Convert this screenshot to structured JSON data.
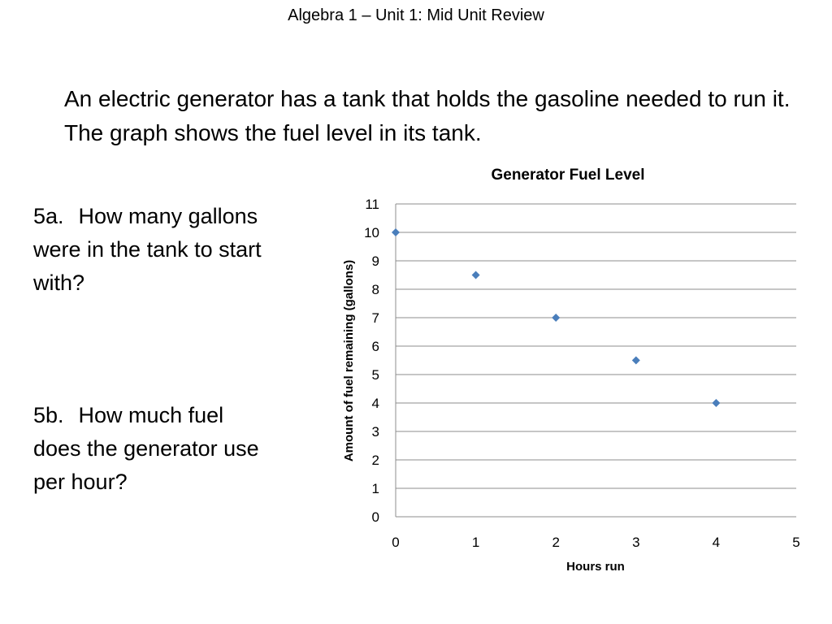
{
  "slide": {
    "title": "Algebra 1 – Unit 1: Mid Unit Review",
    "intro": "An electric generator has a tank that holds the gasoline needed to run it. The graph shows the fuel level in its tank."
  },
  "questions": [
    {
      "number": "5a.",
      "text": "How many gallons were in the tank to start with?"
    },
    {
      "number": "5b.",
      "text": "How much fuel does the generator use per hour?"
    }
  ],
  "chart_data": {
    "type": "scatter",
    "title": "Generator Fuel Level",
    "xlabel": "Hours run",
    "ylabel": "Amount of fuel remaining (gallons)",
    "xlim": [
      0,
      5
    ],
    "ylim": [
      0,
      11
    ],
    "xticks": [
      0,
      1,
      2,
      3,
      4,
      5
    ],
    "yticks": [
      0,
      1,
      2,
      3,
      4,
      5,
      6,
      7,
      8,
      9,
      10,
      11
    ],
    "grid": "horizontal",
    "legend": "none",
    "marker": "diamond",
    "marker_color": "#4a7ebb",
    "series": [
      {
        "x": [
          0,
          1,
          2,
          3,
          4
        ],
        "y": [
          10,
          8.5,
          7,
          5.5,
          4
        ]
      }
    ]
  }
}
